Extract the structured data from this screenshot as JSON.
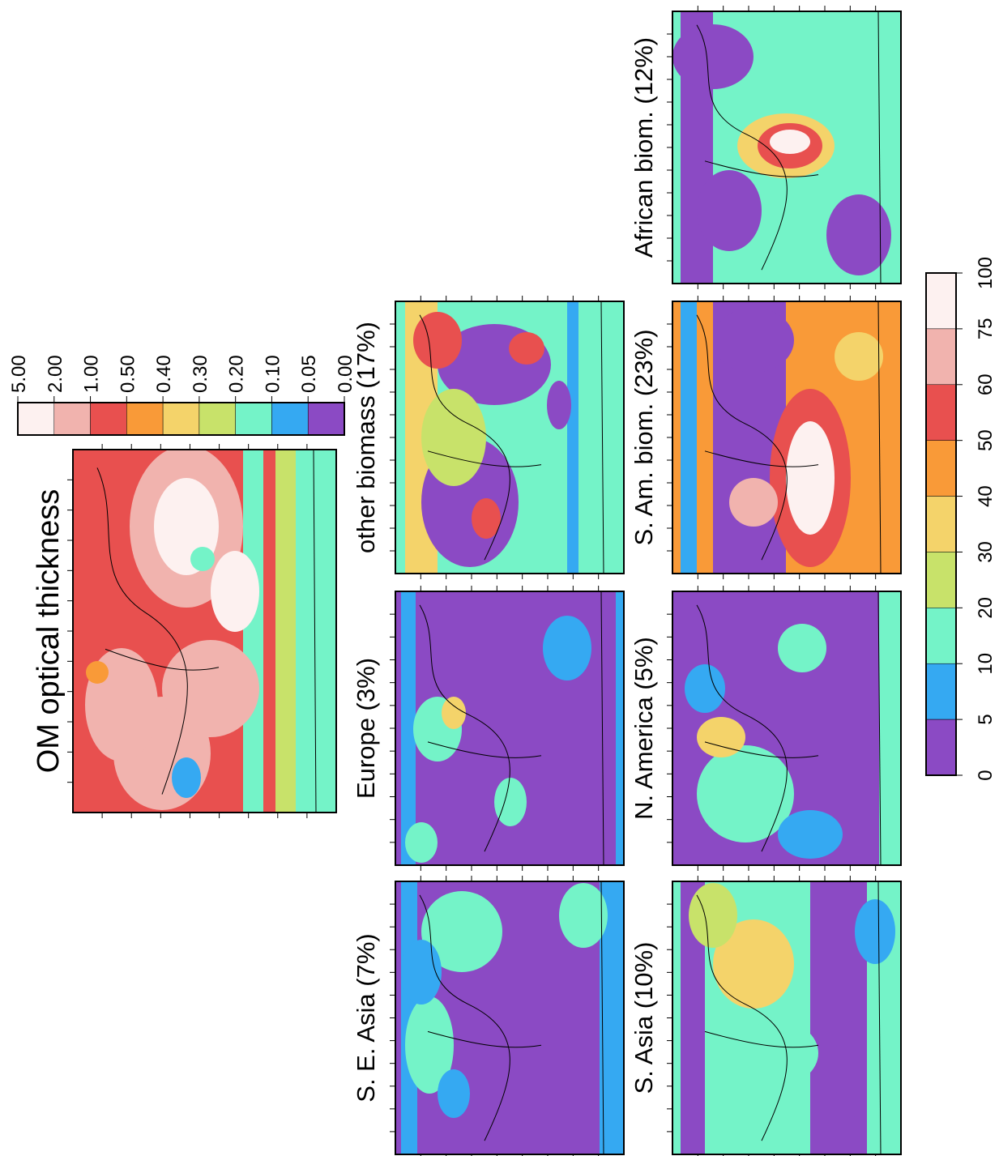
{
  "panels": [
    {
      "title": "OM optical thickness"
    },
    {
      "title": "other biomass (17%)"
    },
    {
      "title": "Europe (3%)"
    },
    {
      "title": "S. E. Asia (7%)"
    },
    {
      "title": "African biom. (12%)"
    },
    {
      "title": "S. Am. biom. (23%)"
    },
    {
      "title": "N. America (5%)"
    },
    {
      "title": "S. Asia (10%)"
    }
  ],
  "colorbars": [
    {
      "labels": [
        "5.00",
        "2.00",
        "1.00",
        "0.50",
        "0.40",
        "0.30",
        "0.20",
        "0.10",
        "0.05",
        "0.00"
      ]
    },
    {
      "labels": [
        "100",
        "75",
        "60",
        "50",
        "40",
        "30",
        "20",
        "10",
        "5",
        "0"
      ]
    }
  ]
}
